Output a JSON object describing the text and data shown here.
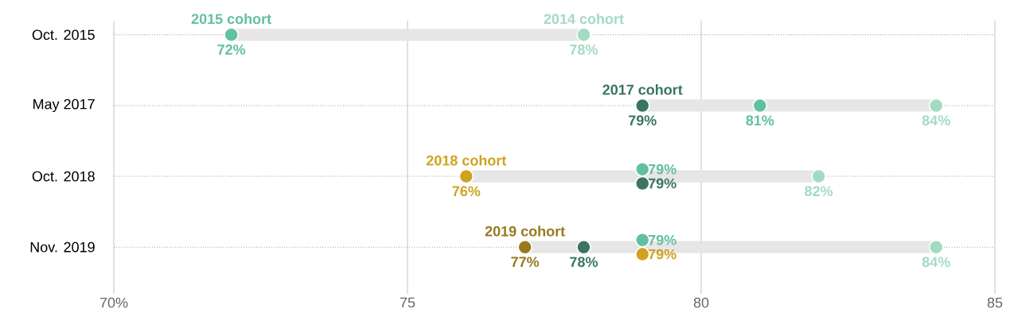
{
  "chart_data": {
    "type": "scatter",
    "orientation": "horizontal",
    "marker": "circle",
    "grid": true,
    "categories": [
      "Oct. 2015",
      "May 2017",
      "Oct. 2018",
      "Nov. 2019"
    ],
    "xlim": [
      70,
      85
    ],
    "xticks": [
      {
        "value": 70,
        "label": "70%"
      },
      75,
      80,
      85
    ],
    "series": [
      {
        "type": "bar",
        "color": "#e6e6e6",
        "base": [
          72,
          79,
          76,
          77
        ],
        "values": [
          6,
          5,
          6,
          7
        ]
      },
      {
        "name": "2014 cohort",
        "color": "#a3dac3",
        "values": [
          78,
          84,
          82,
          84
        ],
        "value_labels": [
          "78%",
          "84%",
          "82%",
          "84%"
        ]
      },
      {
        "name": "2015 cohort",
        "color": "#62bfa2",
        "values": [
          72,
          81,
          79,
          79
        ],
        "value_labels": [
          "72%",
          "81%",
          "79%",
          "79%"
        ]
      },
      {
        "name": "2017 cohort",
        "color": "#3a7563",
        "values": [
          null,
          79,
          79,
          78
        ],
        "value_labels": [
          null,
          "79%",
          "79%",
          "78%"
        ]
      },
      {
        "name": "2018 cohort",
        "color": "#cfa31f",
        "values": [
          null,
          null,
          76,
          79
        ],
        "value_labels": [
          null,
          null,
          "76%",
          "79%"
        ]
      },
      {
        "name": "2019 cohort",
        "color": "#977a1e",
        "values": [
          null,
          null,
          null,
          77
        ],
        "value_labels": [
          null,
          null,
          null,
          "77%"
        ]
      }
    ]
  }
}
